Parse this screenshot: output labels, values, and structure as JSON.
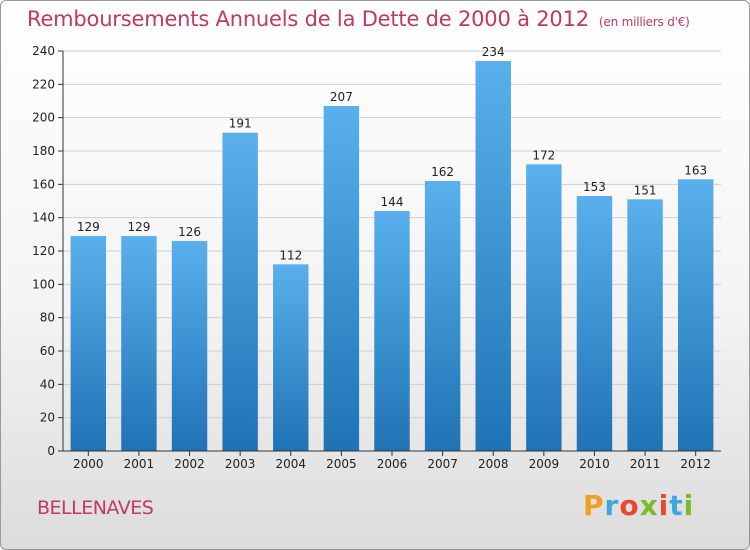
{
  "header": {
    "title": "Remboursements Annuels de la Dette de 2000 à 2012",
    "unit": "(en milliers d'€)"
  },
  "footer": {
    "commune": "BELLENAVES",
    "logo_text": "Proxiti"
  },
  "colors": {
    "title": "#c0395e",
    "bar_top": "#5ab0ec",
    "bar_bottom": "#1f73b5"
  },
  "chart_data": {
    "type": "bar",
    "title": "Remboursements Annuels de la Dette de 2000 à 2012",
    "categories": [
      "2000",
      "2001",
      "2002",
      "2003",
      "2004",
      "2005",
      "2006",
      "2007",
      "2008",
      "2009",
      "2010",
      "2011",
      "2012"
    ],
    "values": [
      129,
      129,
      126,
      191,
      112,
      207,
      144,
      162,
      234,
      172,
      153,
      151,
      163
    ],
    "xlabel": "",
    "ylabel": "",
    "ylim": [
      0,
      240
    ],
    "yticks": [
      0,
      20,
      40,
      60,
      80,
      100,
      120,
      140,
      160,
      180,
      200,
      220,
      240
    ],
    "grid": true
  }
}
